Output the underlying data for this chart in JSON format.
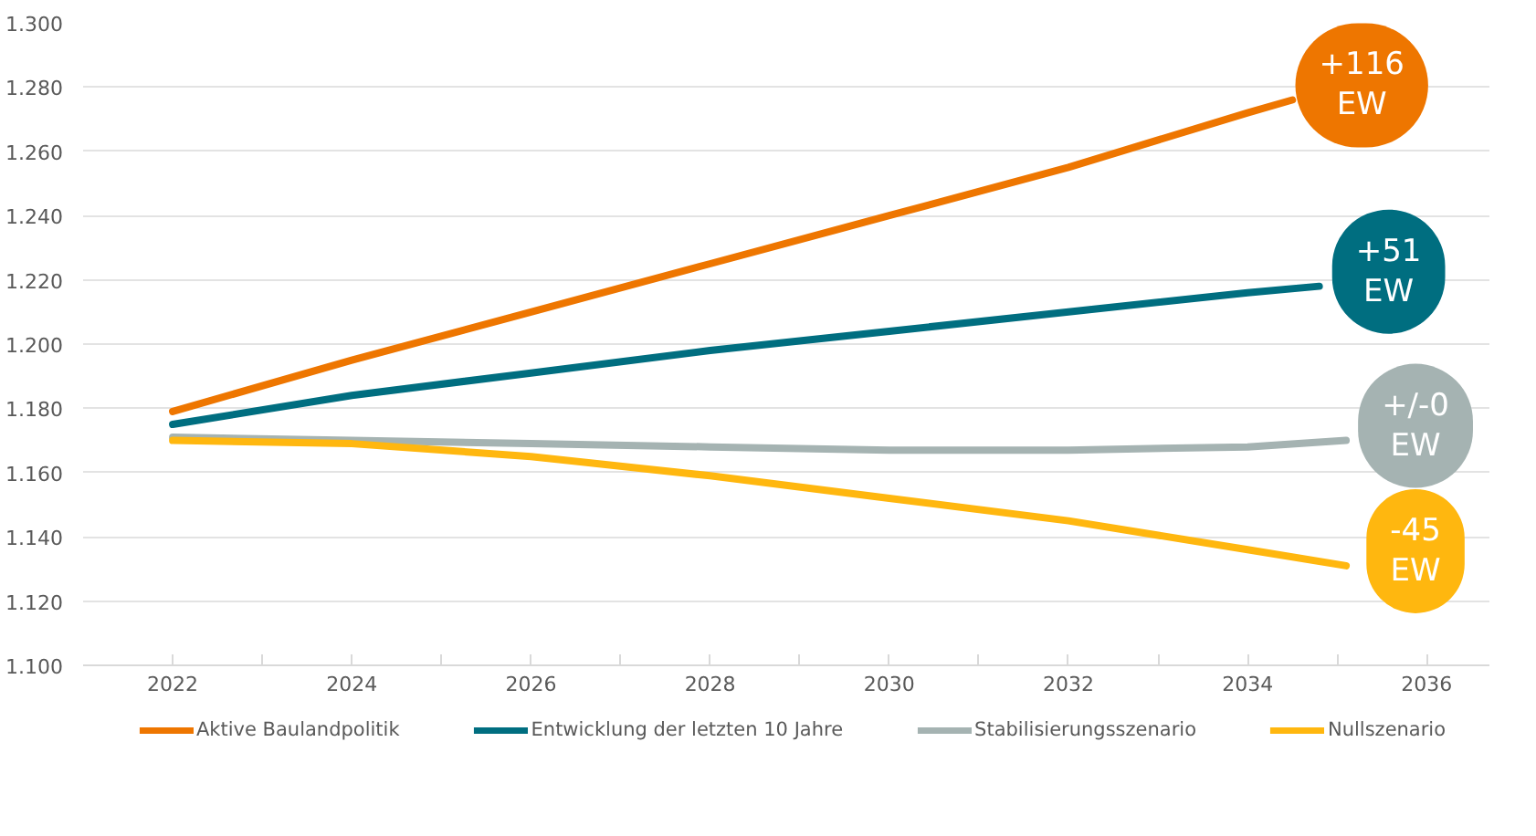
{
  "chart_data": {
    "type": "line",
    "series": [
      {
        "name": "Aktive Baulandpolitik",
        "color": "#ee7600",
        "x": [
          2022,
          2024,
          2026,
          2028,
          2030,
          2032,
          2034,
          2034.5
        ],
        "values": [
          1179,
          1195,
          1210,
          1225,
          1240,
          1255,
          1272,
          1276
        ]
      },
      {
        "name": "Entwicklung der letzten 10 Jahre",
        "color": "#006e80",
        "x": [
          2022,
          2024,
          2026,
          2028,
          2030,
          2032,
          2034,
          2034.8
        ],
        "values": [
          1175,
          1184,
          1191,
          1198,
          1204,
          1210,
          1216,
          1218
        ]
      },
      {
        "name": "Stabilisierungsszenario",
        "color": "#a5b3b2",
        "x": [
          2022,
          2024,
          2026,
          2028,
          2030,
          2032,
          2034,
          2035.1
        ],
        "values": [
          1171,
          1170,
          1169,
          1168,
          1167,
          1167,
          1168,
          1170
        ]
      },
      {
        "name": "Nullszenario",
        "color": "#ffb70f",
        "x": [
          2022,
          2024,
          2026,
          2028,
          2030,
          2032,
          2034,
          2035.1
        ],
        "values": [
          1170,
          1169,
          1165,
          1159,
          1152,
          1145,
          1136,
          1131
        ]
      }
    ],
    "annotations": [
      "+116 EW",
      "+51 EW",
      "+/-0 EW",
      "-45 EW"
    ],
    "xlim": [
      2021,
      2036.7
    ],
    "xticks": [
      2022,
      2024,
      2026,
      2028,
      2030,
      2032,
      2034,
      2036
    ],
    "ylim": [
      1100,
      1300
    ],
    "yticks": [
      {
        "value": 1100,
        "label": "1.100"
      },
      {
        "value": 1120,
        "label": "1.120"
      },
      {
        "value": 1140,
        "label": "1.140"
      },
      {
        "value": 1160,
        "label": "1.160"
      },
      {
        "value": 1180,
        "label": "1.180"
      },
      {
        "value": 1200,
        "label": "1.200"
      },
      {
        "value": 1220,
        "label": "1.220"
      },
      {
        "value": 1240,
        "label": "1.240"
      },
      {
        "value": 1260,
        "label": "1.260"
      },
      {
        "value": 1280,
        "label": "1.280"
      },
      {
        "value": 1300,
        "label": "1.300"
      }
    ],
    "grid": "y",
    "legend": "bottom",
    "line_style": "solid"
  }
}
